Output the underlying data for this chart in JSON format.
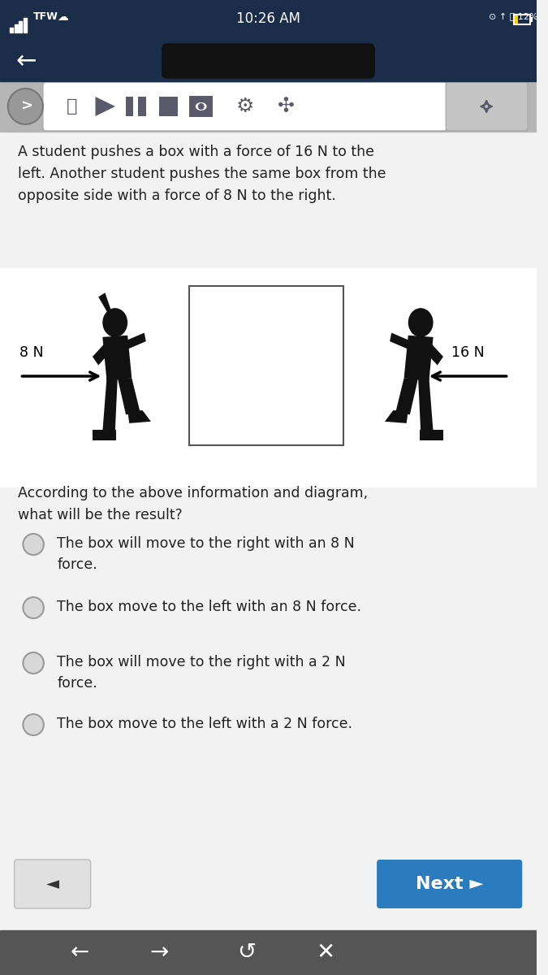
{
  "bg_color": "#f2f2f2",
  "header_color": "#1c2d4a",
  "toolbar_color": "#b5b5b5",
  "time_text": "10:26 AM",
  "question_text": "A student pushes a box with a force of 16 N to the\nleft. Another student pushes the same box from the\nopposite side with a force of 8 N to the right.",
  "label_left": "8 N",
  "label_right": "16 N",
  "box_color": "#ffffff",
  "box_edge_color": "#555555",
  "question2_text": "According to the above information and diagram,\nwhat will be the result?",
  "options": [
    "The box will move to the right with an 8 N\nforce.",
    "The box move to the left with an 8 N force.",
    "The box will move to the right with a 2 N\nforce.",
    "The box move to the left with a 2 N force."
  ],
  "next_btn_color": "#2b7bbf",
  "next_btn_text": "Next ►",
  "back_btn_color": "#e0e0e0",
  "back_btn_text": "◄",
  "bottom_bar_color": "#555555",
  "bottom_icons": "←  →  ↺  ×",
  "fig_color": "#111111",
  "diag_bg": "#ffffff",
  "diag_area_color": "#f2f2f2",
  "arrow_color": "#111111",
  "radio_face": "#d8d8d8",
  "radio_edge": "#999999",
  "text_color": "#222222"
}
